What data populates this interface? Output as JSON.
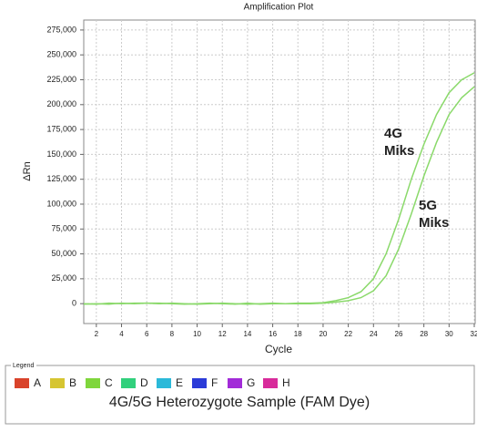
{
  "chart_data": {
    "type": "line",
    "title": "Amplification Plot",
    "x_label": "Cycle",
    "y_label": "ΔRn",
    "x": [
      1,
      2,
      3,
      4,
      5,
      6,
      7,
      8,
      9,
      10,
      11,
      12,
      13,
      14,
      15,
      16,
      17,
      18,
      19,
      20,
      21,
      22,
      23,
      24,
      25,
      26,
      27,
      28,
      29,
      30,
      31,
      32
    ],
    "series": [
      {
        "color": "#8ad96a",
        "values": [
          0,
          -500,
          500,
          0,
          500,
          500,
          500,
          0,
          -500,
          0,
          500,
          0,
          -500,
          500,
          -500,
          0,
          0,
          500,
          500,
          1000,
          3000,
          6000,
          12000,
          25000,
          50000,
          85000,
          125000,
          160000,
          190000,
          212000,
          225000,
          232000
        ]
      },
      {
        "color": "#8ad96a",
        "values": [
          -500,
          0,
          -500,
          500,
          0,
          500,
          0,
          500,
          0,
          -500,
          0,
          500,
          0,
          -500,
          0,
          500,
          0,
          0,
          0,
          500,
          1500,
          3000,
          6000,
          13000,
          28000,
          55000,
          90000,
          128000,
          162000,
          190000,
          207000,
          218000
        ]
      }
    ],
    "xlim": [
      1,
      32
    ],
    "ylim": [
      -20000,
      285000
    ],
    "xticks": [
      2,
      4,
      6,
      8,
      10,
      12,
      14,
      16,
      18,
      20,
      22,
      24,
      26,
      28,
      30,
      32
    ],
    "yticks": [
      0,
      {
        "value": 25000,
        "label": "25,000"
      },
      {
        "value": 50000,
        "label": "50,000"
      },
      {
        "value": 75000,
        "label": "75,000"
      },
      {
        "value": 100000,
        "label": "100,000"
      },
      {
        "value": 125000,
        "label": "125,000"
      },
      {
        "value": 150000,
        "label": "150,000"
      },
      {
        "value": 175000,
        "label": "175,000"
      },
      {
        "value": 200000,
        "label": "200,000"
      },
      {
        "value": 225000,
        "label": "225,000"
      },
      {
        "value": 250000,
        "label": "250,000"
      },
      {
        "value": 275000,
        "label": "275,000"
      }
    ],
    "grid": true,
    "annotations": [
      [
        "4G",
        "Miks"
      ],
      [
        "5G",
        "Miks"
      ]
    ]
  },
  "legend": {
    "title": "Legend",
    "items": [
      {
        "label": "A",
        "color": "#d9432b"
      },
      {
        "label": "B",
        "color": "#d6c531"
      },
      {
        "label": "C",
        "color": "#7fd63c"
      },
      {
        "label": "D",
        "color": "#31d07c"
      },
      {
        "label": "E",
        "color": "#2bb9d9"
      },
      {
        "label": "F",
        "color": "#2b3bd8"
      },
      {
        "label": "G",
        "color": "#a22bd8"
      },
      {
        "label": "H",
        "color": "#d82b9b"
      }
    ],
    "caption": "4G/5G Heterozygote Sample (FAM Dye)"
  }
}
